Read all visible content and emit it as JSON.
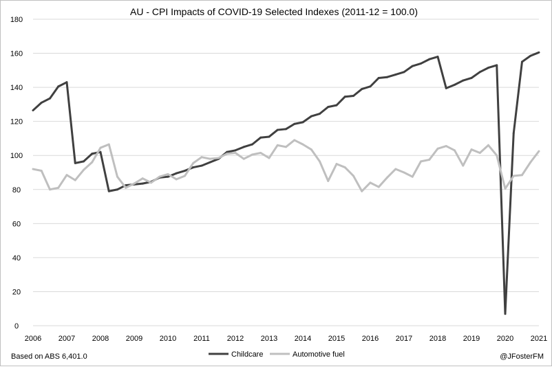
{
  "chart_data": {
    "type": "line",
    "title": "AU - CPI Impacts of COVID-19 Selected Indexes (2011-12 = 100.0)",
    "xlabel": "",
    "ylabel": "",
    "xlim": [
      2006,
      2021
    ],
    "ylim": [
      0,
      180
    ],
    "yticks": [
      0,
      20,
      40,
      60,
      80,
      100,
      120,
      140,
      160,
      180
    ],
    "ytick_labels": [
      "0",
      "20",
      "40",
      "60",
      "80",
      "100",
      "120",
      "140",
      "160",
      "180"
    ],
    "xticks": [
      2006,
      2007,
      2008,
      2009,
      2010,
      2011,
      2012,
      2013,
      2014,
      2015,
      2016,
      2017,
      2018,
      2019,
      2020,
      2021
    ],
    "xtick_labels": [
      "2006",
      "2007",
      "2008",
      "2009",
      "2010",
      "2011",
      "2012",
      "2013",
      "2014",
      "2015",
      "2016",
      "2017",
      "2018",
      "2019",
      "2020",
      "2021"
    ],
    "grid": "horizontal",
    "legend_position": "bottom-center",
    "series": [
      {
        "name": "Childcare",
        "color": "#404040",
        "points": [
          [
            2006.0,
            126.5
          ],
          [
            2006.25,
            131.0
          ],
          [
            2006.5,
            133.5
          ],
          [
            2006.75,
            140.5
          ],
          [
            2007.0,
            143.0
          ],
          [
            2007.25,
            95.5
          ],
          [
            2007.5,
            96.5
          ],
          [
            2007.75,
            101.0
          ],
          [
            2008.0,
            102.0
          ],
          [
            2008.25,
            79.0
          ],
          [
            2008.5,
            80.0
          ],
          [
            2008.75,
            82.5
          ],
          [
            2009.0,
            83.0
          ],
          [
            2009.25,
            83.5
          ],
          [
            2009.5,
            84.5
          ],
          [
            2009.75,
            87.0
          ],
          [
            2010.0,
            87.5
          ],
          [
            2010.25,
            89.5
          ],
          [
            2010.5,
            91.0
          ],
          [
            2010.75,
            93.0
          ],
          [
            2011.0,
            94.0
          ],
          [
            2011.25,
            96.0
          ],
          [
            2011.5,
            98.0
          ],
          [
            2011.75,
            102.0
          ],
          [
            2012.0,
            103.0
          ],
          [
            2012.25,
            105.0
          ],
          [
            2012.5,
            106.5
          ],
          [
            2012.75,
            110.5
          ],
          [
            2013.0,
            111.0
          ],
          [
            2013.25,
            115.0
          ],
          [
            2013.5,
            115.5
          ],
          [
            2013.75,
            118.5
          ],
          [
            2014.0,
            119.5
          ],
          [
            2014.25,
            123.0
          ],
          [
            2014.5,
            124.5
          ],
          [
            2014.75,
            128.5
          ],
          [
            2015.0,
            129.5
          ],
          [
            2015.25,
            134.5
          ],
          [
            2015.5,
            135.0
          ],
          [
            2015.75,
            139.0
          ],
          [
            2016.0,
            140.5
          ],
          [
            2016.25,
            145.5
          ],
          [
            2016.5,
            146.0
          ],
          [
            2016.75,
            147.5
          ],
          [
            2017.0,
            149.0
          ],
          [
            2017.25,
            152.5
          ],
          [
            2017.5,
            154.0
          ],
          [
            2017.75,
            156.5
          ],
          [
            2018.0,
            158.0
          ],
          [
            2018.25,
            139.5
          ],
          [
            2018.5,
            141.5
          ],
          [
            2018.75,
            144.0
          ],
          [
            2019.0,
            145.5
          ],
          [
            2019.25,
            149.0
          ],
          [
            2019.5,
            151.5
          ],
          [
            2019.75,
            153.0
          ],
          [
            2020.0,
            7.0
          ],
          [
            2020.25,
            113.0
          ],
          [
            2020.5,
            155.0
          ],
          [
            2020.75,
            158.5
          ],
          [
            2021.0,
            160.5
          ]
        ]
      },
      {
        "name": "Automotive fuel",
        "color": "#bfbfbf",
        "points": [
          [
            2006.0,
            92.0
          ],
          [
            2006.25,
            91.0
          ],
          [
            2006.5,
            80.0
          ],
          [
            2006.75,
            81.0
          ],
          [
            2007.0,
            88.5
          ],
          [
            2007.25,
            85.5
          ],
          [
            2007.5,
            91.5
          ],
          [
            2007.75,
            96.0
          ],
          [
            2008.0,
            104.5
          ],
          [
            2008.25,
            106.5
          ],
          [
            2008.5,
            87.5
          ],
          [
            2008.75,
            81.0
          ],
          [
            2009.0,
            83.5
          ],
          [
            2009.25,
            86.5
          ],
          [
            2009.5,
            84.0
          ],
          [
            2009.75,
            87.5
          ],
          [
            2010.0,
            89.0
          ],
          [
            2010.25,
            86.0
          ],
          [
            2010.5,
            88.0
          ],
          [
            2010.75,
            95.5
          ],
          [
            2011.0,
            99.0
          ],
          [
            2011.25,
            98.0
          ],
          [
            2011.5,
            98.5
          ],
          [
            2011.75,
            101.0
          ],
          [
            2012.0,
            101.5
          ],
          [
            2012.25,
            98.0
          ],
          [
            2012.5,
            100.5
          ],
          [
            2012.75,
            101.5
          ],
          [
            2013.0,
            98.5
          ],
          [
            2013.25,
            106.0
          ],
          [
            2013.5,
            105.0
          ],
          [
            2013.75,
            109.0
          ],
          [
            2014.0,
            106.5
          ],
          [
            2014.25,
            103.5
          ],
          [
            2014.5,
            96.5
          ],
          [
            2014.75,
            85.0
          ],
          [
            2015.0,
            95.0
          ],
          [
            2015.25,
            93.0
          ],
          [
            2015.5,
            88.0
          ],
          [
            2015.75,
            79.0
          ],
          [
            2016.0,
            84.0
          ],
          [
            2016.25,
            81.5
          ],
          [
            2016.5,
            87.0
          ],
          [
            2016.75,
            92.0
          ],
          [
            2017.0,
            90.0
          ],
          [
            2017.25,
            87.5
          ],
          [
            2017.5,
            96.5
          ],
          [
            2017.75,
            97.5
          ],
          [
            2018.0,
            104.0
          ],
          [
            2018.25,
            105.5
          ],
          [
            2018.5,
            103.0
          ],
          [
            2018.75,
            94.0
          ],
          [
            2019.0,
            103.5
          ],
          [
            2019.25,
            101.5
          ],
          [
            2019.5,
            106.0
          ],
          [
            2019.75,
            100.0
          ],
          [
            2020.0,
            80.5
          ],
          [
            2020.25,
            88.0
          ],
          [
            2020.5,
            88.5
          ],
          [
            2020.75,
            96.0
          ],
          [
            2021.0,
            102.5
          ]
        ]
      }
    ],
    "footer_left": "Based on ABS 6,401.0",
    "footer_right": "@JFosterFM"
  }
}
